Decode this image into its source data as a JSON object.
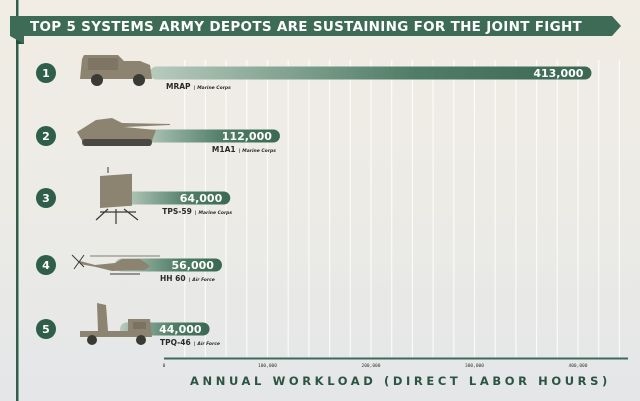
{
  "chart_data": {
    "type": "bar",
    "orientation": "horizontal",
    "title": "TOP 5 SYSTEMS ARMY DEPOTS ARE SUSTAINING FOR THE JOINT FIGHT",
    "xlabel": "ANNUAL WORKLOAD (DIRECT LABOR HOURS)",
    "xlim": [
      0,
      440000
    ],
    "xticks": [
      0,
      100000,
      200000,
      300000,
      400000
    ],
    "xtick_labels": [
      "0",
      "100,000",
      "200,000",
      "300,000",
      "400,000"
    ],
    "grid": "vertical",
    "items": [
      {
        "rank": "1",
        "name": "MRAP",
        "branch": "Marine Corps",
        "value": 413000,
        "value_label": "413,000",
        "icon": "mrap-vehicle-icon"
      },
      {
        "rank": "2",
        "name": "M1A1",
        "branch": "Marine Corps",
        "value": 112000,
        "value_label": "112,000",
        "icon": "tank-icon"
      },
      {
        "rank": "3",
        "name": "TPS-59",
        "branch": "Marine Corps",
        "value": 64000,
        "value_label": "64,000",
        "icon": "radar-icon"
      },
      {
        "rank": "4",
        "name": "HH 60",
        "branch": "Air Force",
        "value": 56000,
        "value_label": "56,000",
        "icon": "helicopter-icon"
      },
      {
        "rank": "5",
        "name": "TPQ-46",
        "branch": "Air Force",
        "value": 44000,
        "value_label": "44,000",
        "icon": "radar-truck-icon"
      }
    ],
    "colors": {
      "bar": "#3d6b56",
      "bar_fade": "#a9c2b4",
      "accent": "#2f5e4b",
      "vehicle": "#8c8370"
    }
  }
}
